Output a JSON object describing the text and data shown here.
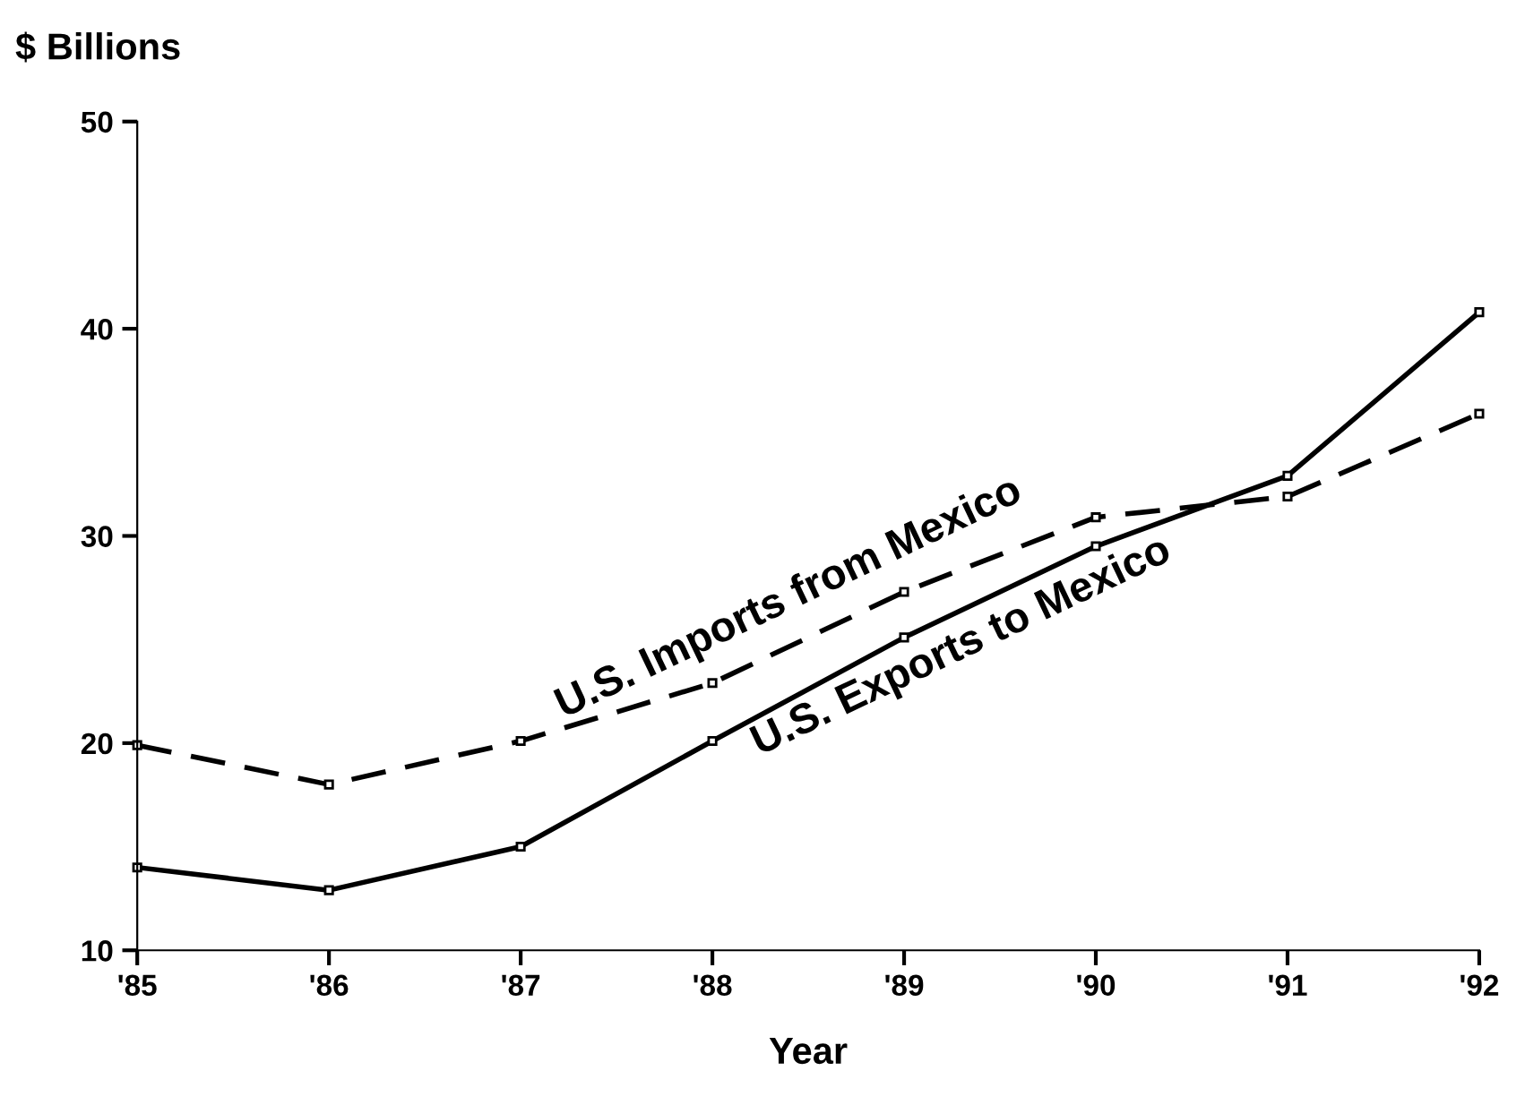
{
  "chart_data": {
    "type": "line",
    "ylabel": "$ Billions",
    "xlabel": "Year",
    "categories": [
      "'85",
      "'86",
      "'87",
      "'88",
      "'89",
      "'90",
      "'91",
      "'92"
    ],
    "series": [
      {
        "name": "U.S. Imports from Mexico",
        "color": "#000000",
        "line_style": "dashed",
        "values": [
          19.9,
          18,
          20.1,
          22.9,
          27.3,
          30.9,
          31.9,
          35.9
        ]
      },
      {
        "name": "U.S. Exports to Mexico",
        "color": "#000000",
        "line_style": "solid",
        "values": [
          14,
          12.9,
          15,
          20.1,
          25.1,
          29.5,
          32.9,
          40.8
        ]
      }
    ],
    "ylim": [
      10,
      50
    ],
    "yticks": [
      10,
      20,
      30,
      40,
      50
    ],
    "marker": "square",
    "grid": false
  }
}
